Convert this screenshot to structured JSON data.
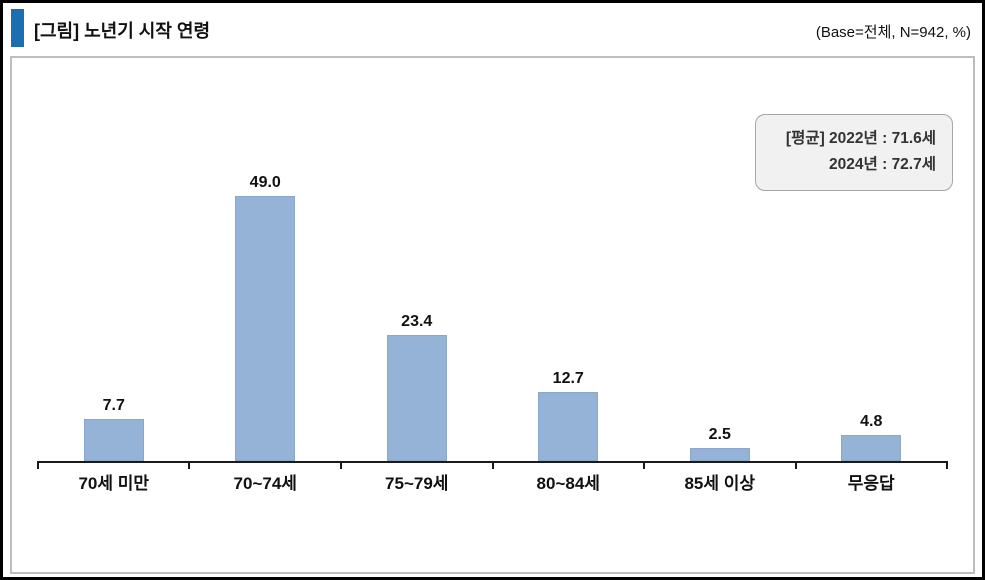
{
  "header": {
    "title": "[그림] 노년기 시작 연령",
    "base_info": "(Base=전체,  N=942,  %)"
  },
  "annotation_box": {
    "line1": "[평균] 2022년 : 71.6세",
    "line2": "2024년 : 72.7세"
  },
  "colors": {
    "accent": "#1D6EB0",
    "bar": "#95B3D7",
    "bar_edge": "#8AA6CB",
    "box_bg": "#F1F1F1",
    "box_border": "#A6A6A6"
  },
  "chart_data": {
    "type": "bar",
    "title": "노년기 시작 연령",
    "categories": [
      "70세 미만",
      "70~74세",
      "75~79세",
      "80~84세",
      "85세 이상",
      "무응답"
    ],
    "values": [
      7.7,
      49.0,
      23.4,
      12.7,
      2.5,
      4.8
    ],
    "unit": "%",
    "xlabel": "",
    "ylabel": "",
    "ylim": [
      0,
      75
    ],
    "grid": false,
    "data_labels": true,
    "annotations": [
      "[평균] 2022년 : 71.6세",
      "2024년 : 72.7세"
    ]
  }
}
